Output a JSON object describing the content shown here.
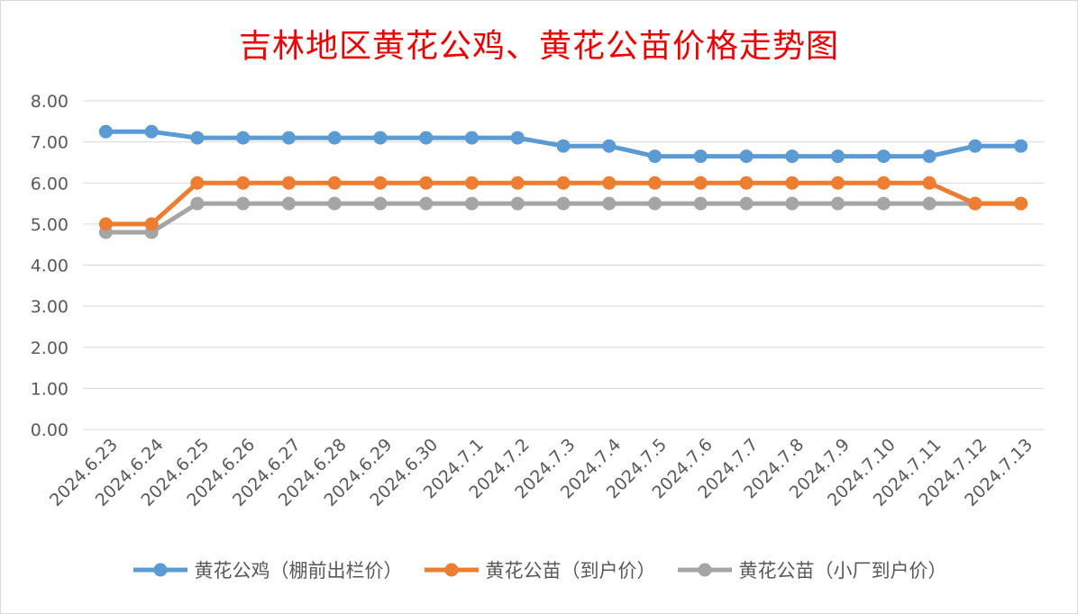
{
  "chart_data": {
    "type": "line",
    "title": "吉林地区黄花公鸡、黄花公苗价格走势图",
    "xlabel": "",
    "ylabel": "",
    "ylim": [
      0,
      8
    ],
    "yticks": [
      "0.00",
      "1.00",
      "2.00",
      "3.00",
      "4.00",
      "5.00",
      "6.00",
      "7.00",
      "8.00"
    ],
    "grid": true,
    "legend_position": "bottom",
    "categories": [
      "2024.6.23",
      "2024.6.24",
      "2024.6.25",
      "2024.6.26",
      "2024.6.27",
      "2024.6.28",
      "2024.6.29",
      "2024.6.30",
      "2024.7.1",
      "2024.7.2",
      "2024.7.3",
      "2024.7.4",
      "2024.7.5",
      "2024.7.6",
      "2024.7.7",
      "2024.7.8",
      "2024.7.9",
      "2024.7.10",
      "2024.7.11",
      "2024.7.12",
      "2024.7.13"
    ],
    "series": [
      {
        "name": "黄花公鸡（棚前出栏价）",
        "color": "#5b9bd5",
        "values": [
          7.25,
          7.25,
          7.1,
          7.1,
          7.1,
          7.1,
          7.1,
          7.1,
          7.1,
          7.1,
          6.9,
          6.9,
          6.65,
          6.65,
          6.65,
          6.65,
          6.65,
          6.65,
          6.65,
          6.9,
          6.9
        ]
      },
      {
        "name": "黄花公苗（到户价）",
        "color": "#ed7d31",
        "values": [
          5.0,
          5.0,
          6.0,
          6.0,
          6.0,
          6.0,
          6.0,
          6.0,
          6.0,
          6.0,
          6.0,
          6.0,
          6.0,
          6.0,
          6.0,
          6.0,
          6.0,
          6.0,
          6.0,
          5.5,
          5.5
        ]
      },
      {
        "name": "黄花公苗（小厂到户价）",
        "color": "#a5a5a5",
        "values": [
          4.8,
          4.8,
          5.5,
          5.5,
          5.5,
          5.5,
          5.5,
          5.5,
          5.5,
          5.5,
          5.5,
          5.5,
          5.5,
          5.5,
          5.5,
          5.5,
          5.5,
          5.5,
          5.5,
          5.5,
          5.5
        ]
      }
    ]
  }
}
